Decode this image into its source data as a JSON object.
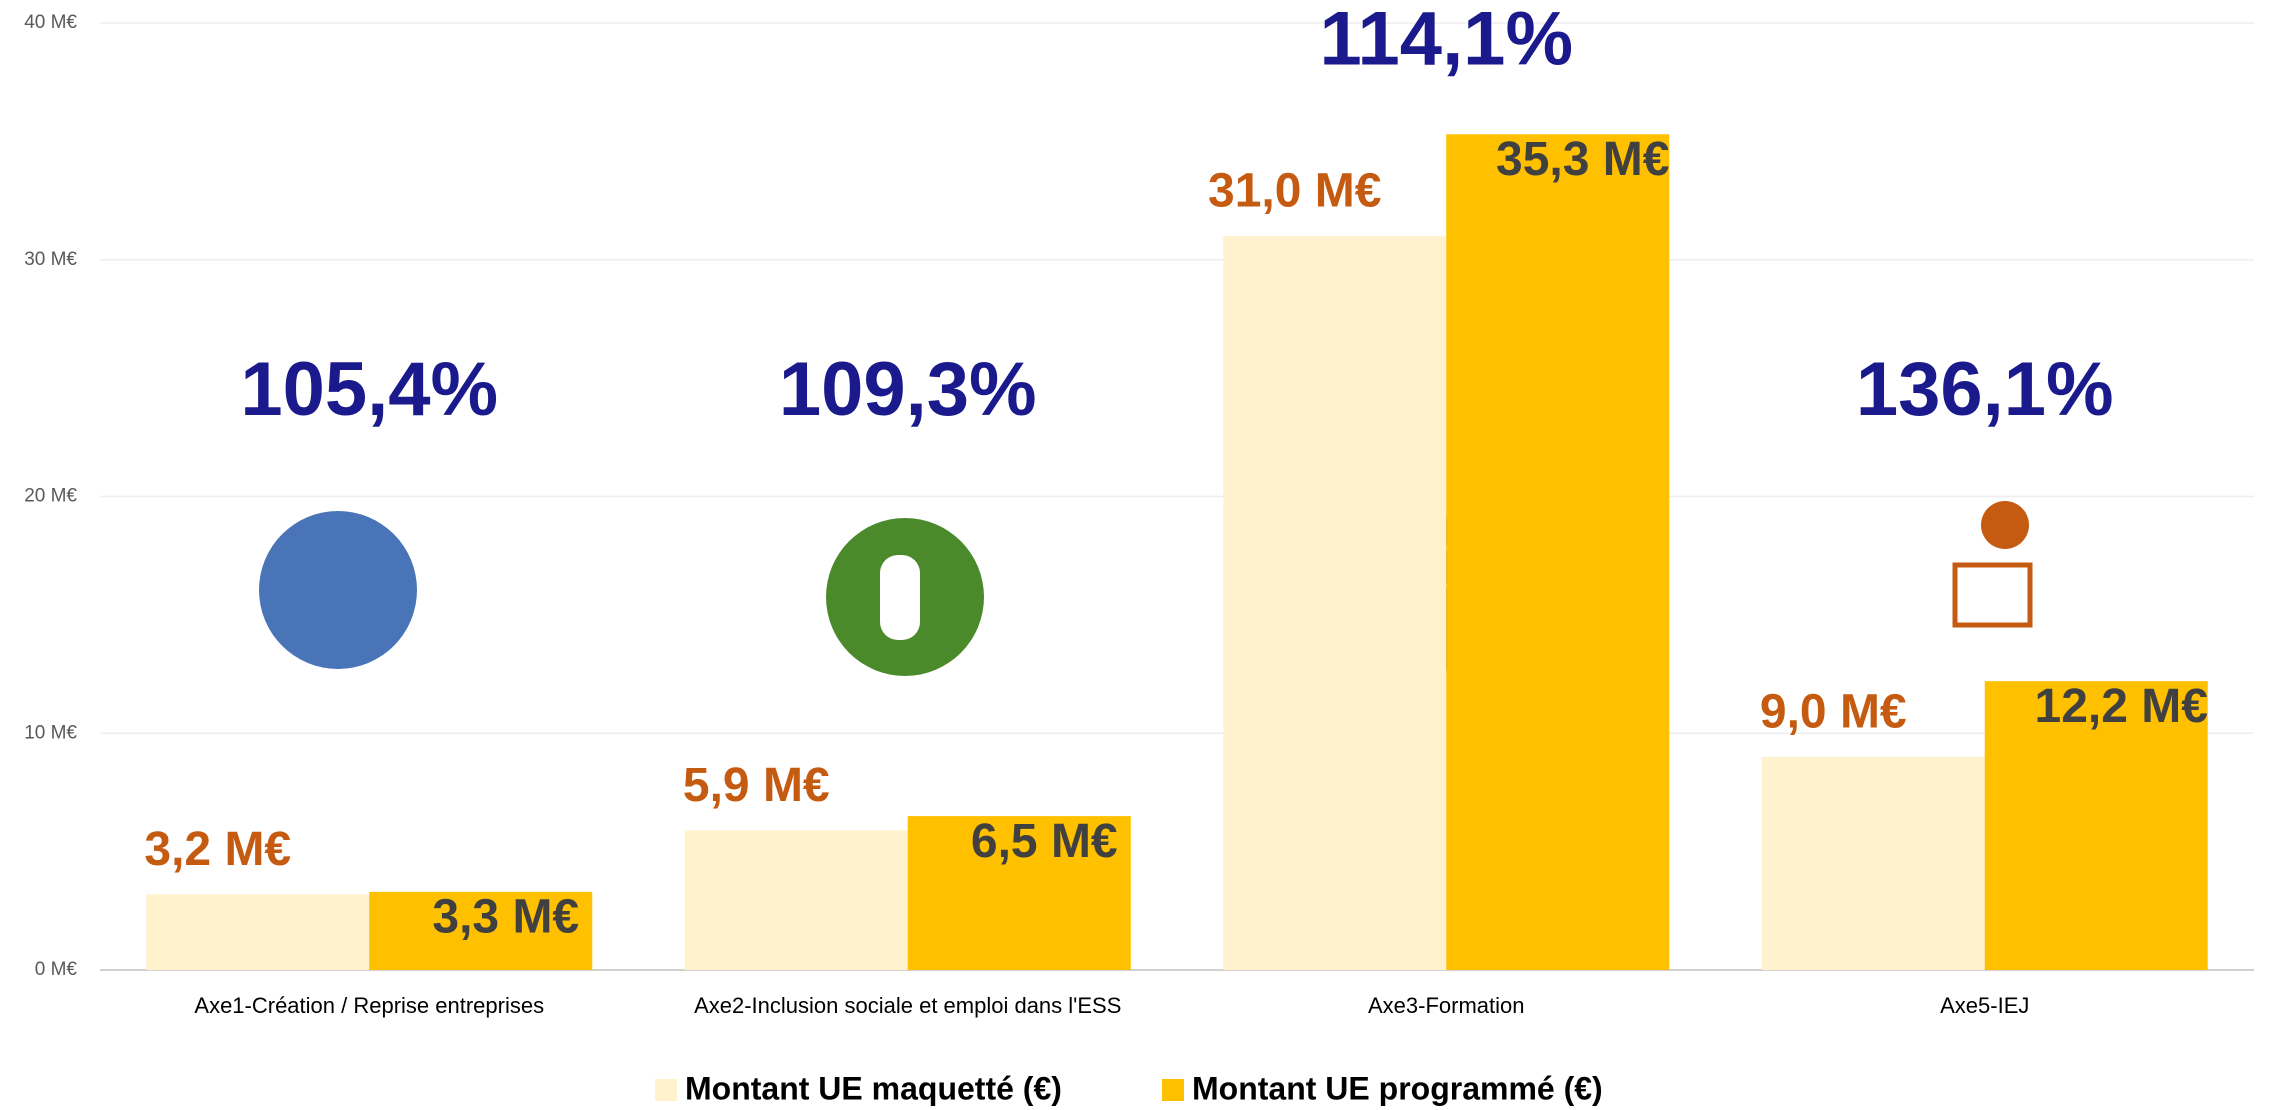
{
  "chart_data": {
    "type": "bar",
    "categories": [
      "Axe1-Création / Reprise entreprises",
      "Axe2-Inclusion sociale et emploi dans l'ESS",
      "Axe3-Formation",
      "Axe5-IEJ"
    ],
    "series": [
      {
        "name": "Montant UE maquetté (€)",
        "color": "#fff2cc",
        "label_color": "#c55a11",
        "values": [
          3.2,
          5.9,
          31.0,
          9.0
        ],
        "value_labels": [
          "3,2 M€",
          "5,9 M€",
          "31,0 M€",
          "9,0 M€"
        ]
      },
      {
        "name": "Montant UE programmé (€)",
        "color": "#ffc000",
        "label_color": "#404040",
        "values": [
          3.3,
          6.5,
          35.3,
          12.2
        ],
        "value_labels": [
          "3,3 M€",
          "6,5 M€",
          "35,3 M€",
          "12,2 M€"
        ]
      }
    ],
    "annotations": [
      "105,4%",
      "109,3%",
      "114,1%",
      "136,1%"
    ],
    "ylim": [
      0,
      40
    ],
    "yticks": [
      {
        "value": 0,
        "label": "0 M€"
      },
      {
        "value": 10,
        "label": "10 M€"
      },
      {
        "value": 20,
        "label": "20 M€"
      },
      {
        "value": 30,
        "label": "30 M€"
      },
      {
        "value": 40,
        "label": "40 M€"
      }
    ],
    "grid": true
  }
}
